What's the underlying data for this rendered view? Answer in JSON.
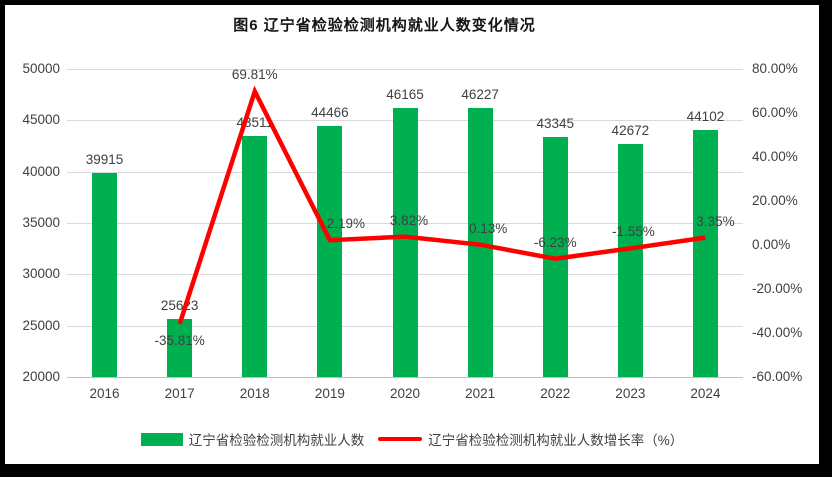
{
  "chart_data": {
    "type": "bar+line",
    "title": "图6 辽宁省检验检测机构就业人数变化情况",
    "categories": [
      "2016",
      "2017",
      "2018",
      "2019",
      "2020",
      "2021",
      "2022",
      "2023",
      "2024"
    ],
    "series": [
      {
        "name": "辽宁省检验检测机构就业人数",
        "type": "bar",
        "color": "#00B050",
        "axis": "left",
        "values": [
          39915,
          25623,
          43511,
          44466,
          46165,
          46227,
          43345,
          42672,
          44102
        ]
      },
      {
        "name": "辽宁省检验检测机构就业人数增长率（%）",
        "type": "line",
        "color": "#FF0000",
        "axis": "right",
        "values": [
          null,
          -35.81,
          69.81,
          2.19,
          3.82,
          0.13,
          -6.23,
          -1.55,
          3.35
        ],
        "labels": [
          null,
          "-35.81%",
          "69.81%",
          "2.19%",
          "3.82%",
          "0.13%",
          "-6.23%",
          "-1.55%",
          "3.35%"
        ],
        "label_positions": [
          null,
          "below",
          "above",
          "above",
          "above",
          "above",
          "above",
          "above",
          "above"
        ]
      }
    ],
    "left_axis": {
      "min": 20000,
      "max": 50000,
      "step": 5000,
      "ticks": [
        "50000",
        "45000",
        "40000",
        "35000",
        "30000",
        "25000",
        "20000"
      ]
    },
    "right_axis": {
      "min": -60,
      "max": 80,
      "step": 20,
      "ticks": [
        "80.00%",
        "60.00%",
        "40.00%",
        "20.00%",
        "0.00%",
        "-20.00%",
        "-40.00%",
        "-60.00%"
      ]
    },
    "grid": true,
    "legend_position": "bottom",
    "text_color": "#404040",
    "gridline_color": "#D9D9D9"
  }
}
